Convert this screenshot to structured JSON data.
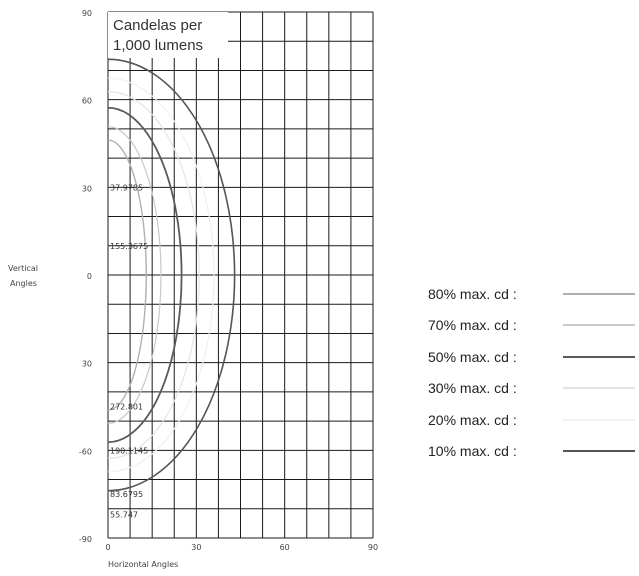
{
  "chart_data": {
    "type": "polar-candela",
    "title": "Candelas per 1,000 lumens",
    "title_lines": [
      "Candelas per",
      "1,000 lumens"
    ],
    "xlabel": "Horizontal Angles",
    "ylabel_lines": [
      "Vertical",
      "Angles"
    ],
    "y_ticks": [
      "90",
      "60",
      "30",
      "0",
      "30",
      "-60",
      "-90"
    ],
    "x_ticks": [
      "0",
      "30",
      "60",
      "90"
    ],
    "curve_labels": [
      {
        "text": "37.9785",
        "angle": 30
      },
      {
        "text": "155.3675",
        "angle": 10
      },
      {
        "text": "272.801",
        "angle": -45
      },
      {
        "text": "190.1145",
        "angle": -60
      },
      {
        "text": "83.6795",
        "angle": -75
      },
      {
        "text": "55.747",
        "angle": -82
      }
    ],
    "series": [
      {
        "name": "10% max. cd",
        "color": "#555555",
        "width": 1.6,
        "radius": 43
      },
      {
        "name": "20% max. cd",
        "color": "#f0f0f0",
        "width": 1.2,
        "radius": 36
      },
      {
        "name": "30% max. cd",
        "color": "#e4e4e4",
        "width": 1.2,
        "radius": 31
      },
      {
        "name": "50% max. cd",
        "color": "#5a5a5a",
        "width": 1.8,
        "radius": 25
      },
      {
        "name": "70% max. cd",
        "color": "#c8c8c8",
        "width": 1.2,
        "radius": 18
      },
      {
        "name": "80% max. cd",
        "color": "#b0b0b0",
        "width": 1.4,
        "radius": 13
      }
    ],
    "legend_position": "right",
    "legend_order": [
      "80% max. cd :",
      "70% max. cd :",
      "50% max. cd :",
      "30% max. cd :",
      "20% max. cd :",
      "10% max. cd :"
    ],
    "grid": true
  }
}
